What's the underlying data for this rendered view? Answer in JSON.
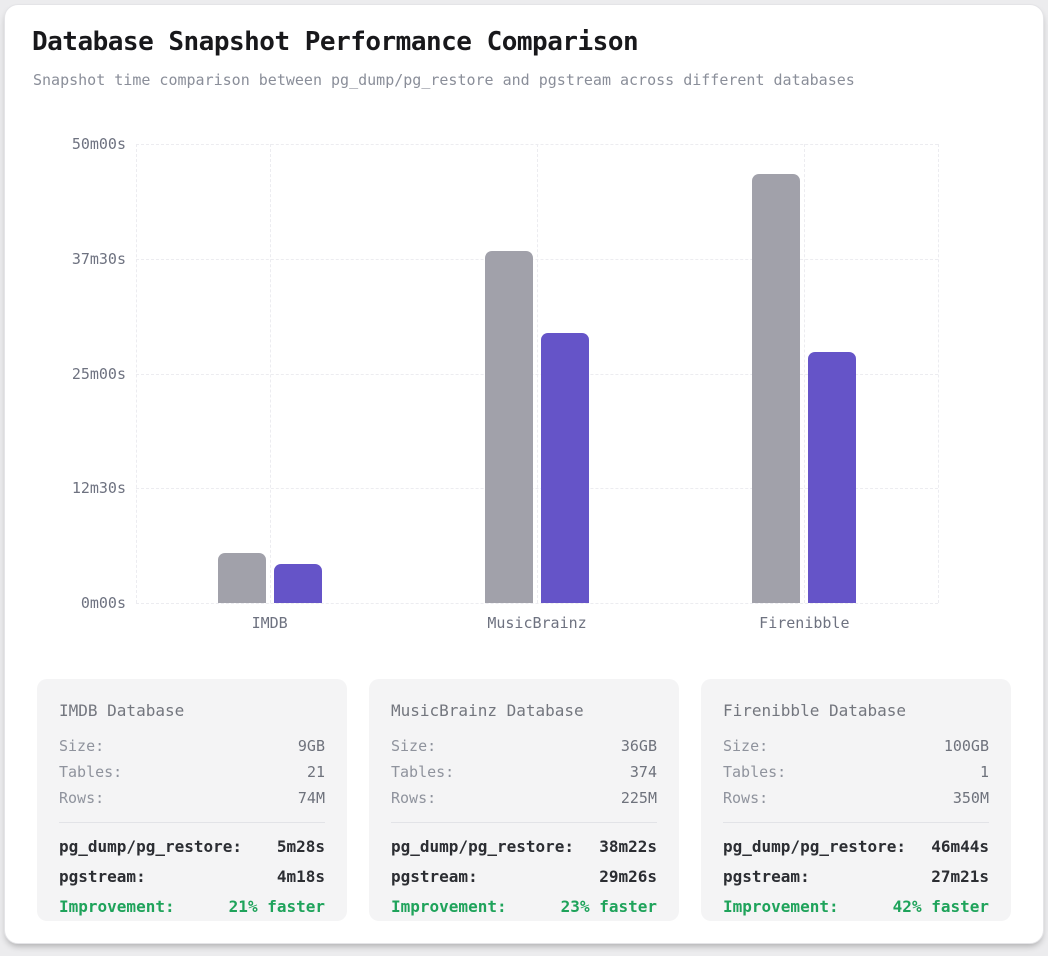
{
  "header": {
    "title": "Database Snapshot Performance Comparison",
    "subtitle": "Snapshot time comparison between pg_dump/pg_restore and pgstream across different databases"
  },
  "chart_data": {
    "type": "bar",
    "title": "Database Snapshot Performance Comparison",
    "categories": [
      "IMDB",
      "MusicBrainz",
      "Firenibble"
    ],
    "series": [
      {
        "name": "pg_dump/pg_restore",
        "color": "#a1a1aa",
        "values_seconds": [
          328,
          2302,
          2804
        ],
        "value_labels": [
          "5m28s",
          "38m22s",
          "46m44s"
        ]
      },
      {
        "name": "pgstream",
        "color": "#6554c8",
        "values_seconds": [
          258,
          1766,
          1641
        ],
        "value_labels": [
          "4m18s",
          "29m26s",
          "27m21s"
        ]
      }
    ],
    "y_axis": {
      "min_seconds": 0,
      "max_seconds": 3000,
      "tick_labels_top_to_bottom": [
        "50m00s",
        "37m30s",
        "25m00s",
        "12m30s",
        "0m00s"
      ]
    },
    "xlabel": "",
    "ylabel": "",
    "grid": "dashed, horizontal at each y tick and vertical at category centers and plot edges",
    "legend": "none"
  },
  "cards": [
    {
      "title": "IMDB Database",
      "stats": [
        {
          "label": "Size:",
          "value": "9GB"
        },
        {
          "label": "Tables:",
          "value": "21"
        },
        {
          "label": "Rows:",
          "value": "74M"
        }
      ],
      "perf": [
        {
          "label": "pg_dump/pg_restore:",
          "value": "5m28s"
        },
        {
          "label": "pgstream:",
          "value": "4m18s"
        }
      ],
      "improvement": {
        "label": "Improvement:",
        "value": "21% faster"
      }
    },
    {
      "title": "MusicBrainz Database",
      "stats": [
        {
          "label": "Size:",
          "value": "36GB"
        },
        {
          "label": "Tables:",
          "value": "374"
        },
        {
          "label": "Rows:",
          "value": "225M"
        }
      ],
      "perf": [
        {
          "label": "pg_dump/pg_restore:",
          "value": "38m22s"
        },
        {
          "label": "pgstream:",
          "value": "29m26s"
        }
      ],
      "improvement": {
        "label": "Improvement:",
        "value": "23% faster"
      }
    },
    {
      "title": "Firenibble Database",
      "stats": [
        {
          "label": "Size:",
          "value": "100GB"
        },
        {
          "label": "Tables:",
          "value": "1"
        },
        {
          "label": "Rows:",
          "value": "350M"
        }
      ],
      "perf": [
        {
          "label": "pg_dump/pg_restore:",
          "value": "46m44s"
        },
        {
          "label": "pgstream:",
          "value": "27m21s"
        }
      ],
      "improvement": {
        "label": "Improvement:",
        "value": "42% faster"
      }
    }
  ],
  "colors": {
    "pg_dump_bar": "#a1a1aa",
    "pgstream_bar": "#6554c8",
    "improvement_green": "#1fa35b",
    "card_background": "#f4f4f5",
    "axis_text": "#6e7280"
  }
}
